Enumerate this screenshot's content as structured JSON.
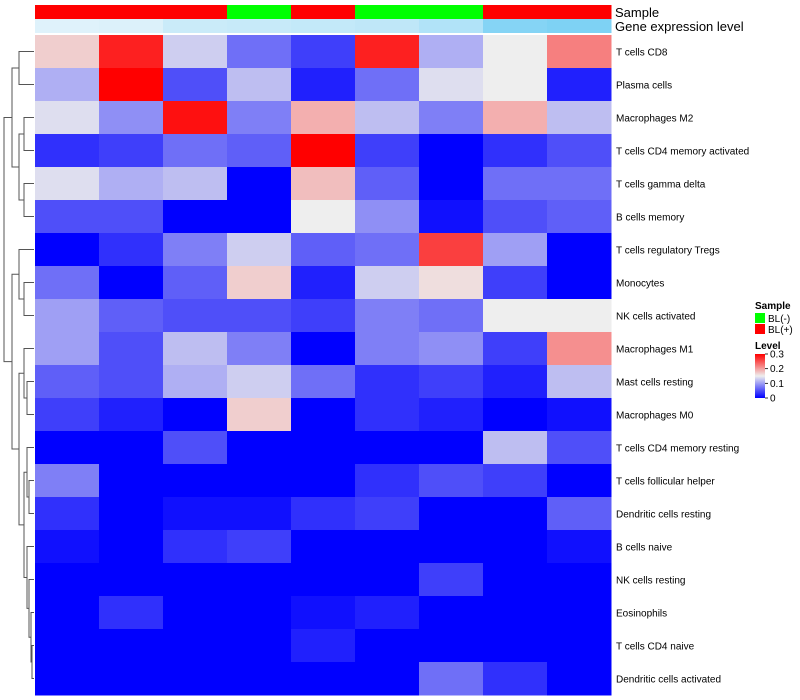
{
  "chart_data": {
    "type": "heatmap",
    "annotation_labels": [
      "Sample",
      "Gene expression level"
    ],
    "sample_groups": [
      "BL(+)",
      "BL(+)",
      "BL(+)",
      "BL(-)",
      "BL(+)",
      "BL(-)",
      "BL(-)",
      "BL(+)",
      "BL(+)"
    ],
    "expression_levels": [
      0.95,
      0.93,
      0.8,
      0.78,
      0.75,
      0.72,
      0.62,
      0.3,
      0.25
    ],
    "rows": [
      "T cells CD8",
      "Plasma cells",
      "Macrophages M2",
      "T cells CD4 memory activated",
      "T cells gamma delta",
      "B cells memory",
      "T cells regulatory  Tregs",
      "Monocytes",
      "NK cells activated",
      "Macrophages M1",
      "Mast cells resting",
      "Macrophages M0",
      "T cells CD4 memory resting",
      "T cells follicular helper",
      "Dendritic cells resting",
      "B cells naive",
      "NK cells resting",
      "Eosinophils",
      "T cells CD4 naive",
      "Dendritic cells activated"
    ],
    "values": [
      [
        0.17,
        0.28,
        0.13,
        0.07,
        0.04,
        0.28,
        0.11,
        0.15,
        0.22
      ],
      [
        0.11,
        0.3,
        0.05,
        0.12,
        0.02,
        0.07,
        0.14,
        0.15,
        0.02
      ],
      [
        0.14,
        0.09,
        0.29,
        0.08,
        0.19,
        0.12,
        0.08,
        0.19,
        0.12
      ],
      [
        0.03,
        0.04,
        0.07,
        0.06,
        0.3,
        0.04,
        0.0,
        0.03,
        0.05
      ],
      [
        0.14,
        0.11,
        0.12,
        0.0,
        0.18,
        0.06,
        0.0,
        0.07,
        0.07
      ],
      [
        0.05,
        0.05,
        0.0,
        0.0,
        0.15,
        0.09,
        0.01,
        0.05,
        0.06
      ],
      [
        0.0,
        0.03,
        0.08,
        0.13,
        0.06,
        0.07,
        0.26,
        0.1,
        0.0
      ],
      [
        0.07,
        0.0,
        0.06,
        0.17,
        0.02,
        0.13,
        0.16,
        0.04,
        0.0
      ],
      [
        0.1,
        0.06,
        0.05,
        0.05,
        0.04,
        0.08,
        0.07,
        0.15,
        0.15
      ],
      [
        0.1,
        0.05,
        0.12,
        0.08,
        0.0,
        0.08,
        0.09,
        0.04,
        0.21
      ],
      [
        0.06,
        0.05,
        0.11,
        0.13,
        0.07,
        0.03,
        0.04,
        0.02,
        0.12
      ],
      [
        0.04,
        0.02,
        0.0,
        0.17,
        0.0,
        0.03,
        0.02,
        0.0,
        0.01
      ],
      [
        0.0,
        0.0,
        0.05,
        0.0,
        0.0,
        0.0,
        0.0,
        0.12,
        0.05
      ],
      [
        0.08,
        0.0,
        0.0,
        0.0,
        0.0,
        0.03,
        0.05,
        0.04,
        0.0
      ],
      [
        0.03,
        0.0,
        0.01,
        0.01,
        0.03,
        0.04,
        0.0,
        0.0,
        0.06
      ],
      [
        0.01,
        0.0,
        0.03,
        0.04,
        0.0,
        0.0,
        0.0,
        0.0,
        0.01
      ],
      [
        0.0,
        0.0,
        0.0,
        0.0,
        0.0,
        0.0,
        0.04,
        0.0,
        0.0
      ],
      [
        0.0,
        0.03,
        0.0,
        0.0,
        0.01,
        0.02,
        0.0,
        0.0,
        0.0
      ],
      [
        0.0,
        0.0,
        0.0,
        0.0,
        0.02,
        0.0,
        0.0,
        0.0,
        0.0
      ],
      [
        0.0,
        0.0,
        0.0,
        0.0,
        0.0,
        0.0,
        0.07,
        0.03,
        0.0
      ]
    ],
    "color_scale": {
      "min": 0,
      "mid": 0.15,
      "max": 0.3,
      "low": "#0000ff",
      "midcolor": "#eeeeee",
      "high": "#ff0000"
    },
    "legend": {
      "sample_title": "Sample",
      "sample_entries": [
        {
          "label": "BL(-)",
          "color": "#00ff00"
        },
        {
          "label": "BL(+)",
          "color": "#ff0000"
        }
      ],
      "level_title": "Level",
      "level_ticks": [
        "0.3",
        "0.2",
        "0.1",
        "0"
      ],
      "placement": "right"
    },
    "expression_gradient": {
      "low": "#e6f4fb",
      "high": "#5bc6f2"
    }
  }
}
